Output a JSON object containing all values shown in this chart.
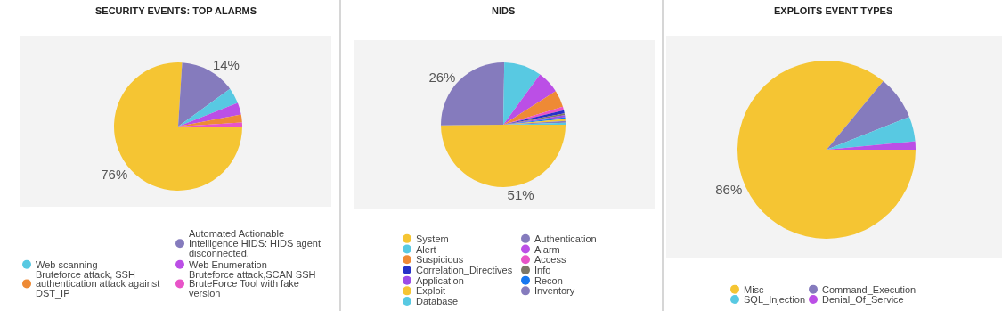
{
  "chart_data": [
    {
      "type": "pie",
      "title": "SECURITY EVENTS: TOP ALARMS",
      "legend": "bottom",
      "categories": [
        null,
        "Automated Actionable Intelligence HIDS: HIDS agent disconnected.",
        "Web scanning",
        "Web Enumeration",
        "Bruteforce attack, SSH authentication attack against DST_IP",
        "Bruteforce attack,SCAN SSH BruteForce Tool with fake version"
      ],
      "values": [
        76,
        14,
        4,
        3,
        2,
        1
      ],
      "colors": [
        "#f5c533",
        "#857bbd",
        "#58c9e2",
        "#bb4fe6",
        "#ee8a35",
        "#e854c8"
      ],
      "value_labels": [
        "76%",
        "14%",
        null,
        null,
        null,
        null
      ]
    },
    {
      "type": "pie",
      "title": "NIDS",
      "legend": "bottom",
      "categories": [
        "System",
        "Authentication",
        "Alert",
        "Alarm",
        "Suspicious",
        "Access",
        "Correlation_Directives",
        "Info",
        "Application",
        "Recon",
        "Exploit",
        "Inventory",
        "Database"
      ],
      "values": [
        51,
        26,
        10,
        6,
        4.5,
        1,
        0.8,
        0.5,
        0.5,
        0.5,
        0.5,
        0.5,
        0.5
      ],
      "colors": [
        "#f5c533",
        "#857bbd",
        "#58c9e2",
        "#bb4fe6",
        "#ee8a35",
        "#e854c8",
        "#2431c8",
        "#7d7868",
        "#9b4de8",
        "#1677f0",
        "#f5c533",
        "#857bbd",
        "#58c9e2"
      ],
      "value_labels": [
        "51%",
        "26%",
        null,
        null,
        null,
        null,
        null,
        null,
        null,
        null,
        null,
        null,
        null
      ]
    },
    {
      "type": "pie",
      "title": "EXPLOITS EVENT TYPES",
      "legend": "bottom",
      "categories": [
        "Misc",
        "Command_Execution",
        "SQL_Injection",
        "Denial_Of_Service"
      ],
      "values": [
        86,
        8,
        4.5,
        1.5
      ],
      "colors": [
        "#f5c533",
        "#857bbd",
        "#58c9e2",
        "#bb4fe6"
      ],
      "value_labels": [
        "86%",
        null,
        null,
        null
      ]
    }
  ]
}
